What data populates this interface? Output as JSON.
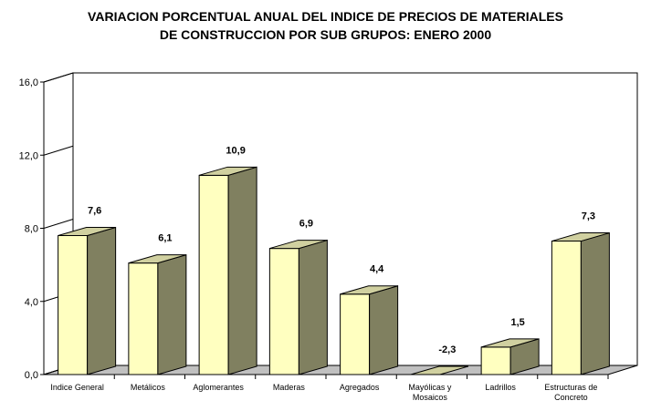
{
  "chart_data": {
    "type": "bar",
    "title_line1": "VARIACION PORCENTUAL ANUAL DEL INDICE DE PRECIOS DE MATERIALES",
    "title_line2": "DE CONSTRUCCION POR SUB GRUPOS: ENERO 2000",
    "categories": [
      {
        "lines": [
          "Indice General"
        ]
      },
      {
        "lines": [
          "Metálicos"
        ]
      },
      {
        "lines": [
          "Aglomerantes"
        ]
      },
      {
        "lines": [
          "Maderas"
        ]
      },
      {
        "lines": [
          "Agregados"
        ]
      },
      {
        "lines": [
          "Mayólicas y",
          "Mosaicos"
        ]
      },
      {
        "lines": [
          "Ladrillos"
        ]
      },
      {
        "lines": [
          "Estructuras de",
          "Concreto"
        ]
      }
    ],
    "values": [
      7.6,
      6.1,
      10.9,
      6.9,
      4.4,
      -2.3,
      1.5,
      7.3
    ],
    "value_labels": [
      "7,6",
      "6,1",
      "10,9",
      "6,9",
      "4,4",
      "-2,3",
      "1,5",
      "7,3"
    ],
    "ylim": [
      0,
      16
    ],
    "yticks": [
      0,
      4,
      8,
      12,
      16
    ],
    "ytick_labels": [
      "0,0",
      "4,0",
      "8,0",
      "12,0",
      "16,0"
    ],
    "xlabel": "",
    "ylabel": "",
    "grid": false,
    "legend": "none",
    "colors": {
      "bar_front": "#ffffc0",
      "bar_side": "#808060",
      "bar_top": "#d0d0a0",
      "floor": "#c0c0c0",
      "back_wall": "#ffffff",
      "outline": "#000000"
    }
  }
}
